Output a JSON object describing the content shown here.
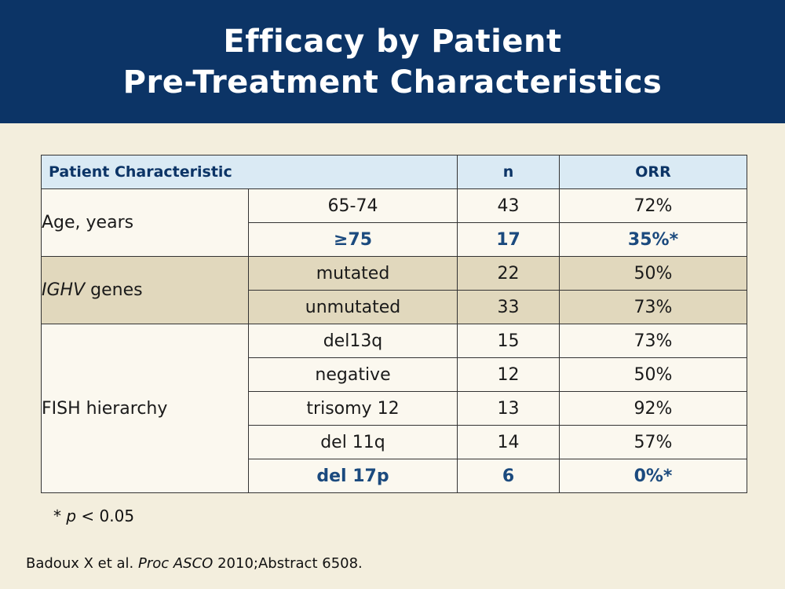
{
  "title": {
    "line1": "Efficacy by Patient",
    "line2": "Pre-Treatment Characteristics"
  },
  "table": {
    "headers": {
      "characteristic": "Patient Characteristic",
      "n": "n",
      "orr": "ORR"
    },
    "groups": [
      {
        "label": "Age, years",
        "rows": [
          {
            "sub": "65-74",
            "n": "43",
            "orr": "72%"
          },
          {
            "sub": "≥75",
            "n": "17",
            "orr": "35%*"
          }
        ]
      },
      {
        "label_italic": "IGHV",
        "label_rest": " genes",
        "rows": [
          {
            "sub": "mutated",
            "n": "22",
            "orr": "50%"
          },
          {
            "sub": "unmutated",
            "n": "33",
            "orr": "73%"
          }
        ]
      },
      {
        "label": "FISH hierarchy",
        "rows": [
          {
            "sub": "del13q",
            "n": "15",
            "orr": "73%"
          },
          {
            "sub": "negative",
            "n": "12",
            "orr": "50%"
          },
          {
            "sub": "trisomy 12",
            "n": "13",
            "orr": "92%"
          },
          {
            "sub": "del 11q",
            "n": "14",
            "orr": "57%"
          },
          {
            "sub": "del 17p",
            "n": "6",
            "orr": "0%*"
          }
        ]
      }
    ]
  },
  "footnote": {
    "star": "*",
    "p": "p",
    "rest": " < 0.05"
  },
  "citation": {
    "authors": "Badoux X et al. ",
    "journal": "Proc ASCO",
    "rest": " 2010;Abstract 6508."
  },
  "colors": {
    "header_bg": "#0c3466",
    "page_bg": "#f3eedd",
    "table_header_bg": "#daeaf4",
    "tan_row_bg": "#e1d8bd",
    "highlight_text": "#1b4a7e"
  }
}
